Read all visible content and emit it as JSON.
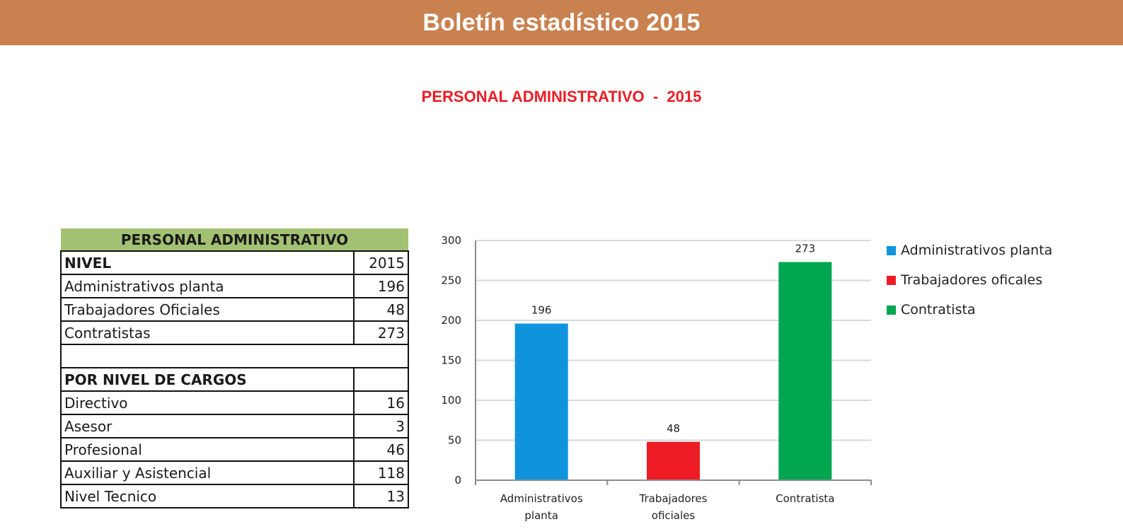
{
  "header": {
    "title": "Boletín estadístico 2015"
  },
  "page_title": "PERSONAL ADMINISTRATIVO  -  2015",
  "table": {
    "title": "PERSONAL ADMINISTRATIVO",
    "rows": [
      {
        "label": "NIVEL",
        "value": "2015",
        "bold": true
      },
      {
        "label": "Administrativos planta",
        "value": "196"
      },
      {
        "label": "Trabajadores Oficiales",
        "value": "48"
      },
      {
        "label": "Contratistas",
        "value": "273"
      },
      {
        "label": "",
        "value": "",
        "spacer": true
      },
      {
        "label": "POR NIVEL DE CARGOS",
        "value": "",
        "bold": true
      },
      {
        "label": "Directivo",
        "value": "16"
      },
      {
        "label": "Asesor",
        "value": "3"
      },
      {
        "label": "Profesional",
        "value": "46"
      },
      {
        "label": "Auxiliar y Asistencial",
        "value": "118"
      },
      {
        "label": "Nivel Tecnico",
        "value": "13"
      }
    ]
  },
  "chart_data": {
    "type": "bar",
    "title": "",
    "xlabel": "",
    "ylabel": "",
    "categories": [
      "Administrativos planta",
      "Trabajadores oficiales",
      "Contratista"
    ],
    "category_lines": [
      [
        "Administrativos",
        "planta"
      ],
      [
        "Trabajadores",
        "oficiales"
      ],
      [
        "Contratista"
      ]
    ],
    "values": [
      196,
      48,
      273
    ],
    "colors": [
      "#0e93dc",
      "#ed1c24",
      "#00a650"
    ],
    "ylim": [
      0,
      300
    ],
    "yticks": [
      0,
      50,
      100,
      150,
      200,
      250,
      300
    ],
    "grid": true,
    "legend": {
      "position": "right",
      "entries": [
        "Administrativos planta",
        "Trabajadores oficales",
        "Contratista"
      ]
    }
  }
}
